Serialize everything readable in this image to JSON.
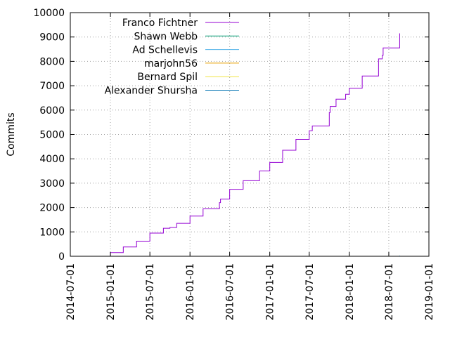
{
  "chart_data": {
    "type": "line",
    "title": "",
    "xlabel": "",
    "ylabel": "Commits",
    "ylim": [
      0,
      10000
    ],
    "yticks": [
      0,
      1000,
      2000,
      3000,
      4000,
      5000,
      6000,
      7000,
      8000,
      9000,
      10000
    ],
    "xlim": [
      "2014-07-01",
      "2019-01-01"
    ],
    "xticks": [
      "2014-07-01",
      "2015-01-01",
      "2015-07-01",
      "2016-01-01",
      "2016-07-01",
      "2017-01-01",
      "2017-07-01",
      "2018-01-01",
      "2018-07-01",
      "2019-01-01"
    ],
    "grid": true,
    "legend_position": "top-left",
    "series": [
      {
        "name": "Franco Fichtner",
        "color": "#9400d3",
        "x": [
          "2014-12-15",
          "2015-01-01",
          "2015-03-01",
          "2015-05-01",
          "2015-07-01",
          "2015-09-01",
          "2015-10-01",
          "2015-11-01",
          "2016-01-01",
          "2016-03-01",
          "2016-05-15",
          "2016-05-20",
          "2016-07-01",
          "2016-09-01",
          "2016-11-15",
          "2017-01-01",
          "2017-03-01",
          "2017-05-01",
          "2017-07-01",
          "2017-07-15",
          "2017-10-01",
          "2017-10-05",
          "2017-11-01",
          "2017-12-15",
          "2018-01-01",
          "2018-03-01",
          "2018-05-15",
          "2018-06-01",
          "2018-06-05",
          "2018-08-20"
        ],
        "values": [
          0,
          150,
          380,
          620,
          950,
          1150,
          1180,
          1350,
          1650,
          1950,
          2200,
          2350,
          2750,
          3100,
          3500,
          3850,
          4350,
          4800,
          5150,
          5350,
          5900,
          6150,
          6450,
          6650,
          6900,
          7400,
          8100,
          8250,
          8550,
          9150
        ]
      },
      {
        "name": "Shawn Webb",
        "color": "#009e73",
        "x": [
          "2016-10-01",
          "2018-08-20"
        ],
        "values": [
          0,
          10
        ]
      },
      {
        "name": "Ad Schellevis",
        "color": "#56b4e9",
        "x": [
          "2016-10-01",
          "2018-08-20"
        ],
        "values": [
          0,
          30
        ]
      },
      {
        "name": "marjohn56",
        "color": "#e69f00",
        "x": [
          "2017-05-01",
          "2018-08-20"
        ],
        "values": [
          0,
          15
        ]
      },
      {
        "name": "Bernard Spil",
        "color": "#f0e442",
        "x": [
          "2016-01-01",
          "2018-08-20"
        ],
        "values": [
          0,
          5
        ]
      },
      {
        "name": "Alexander Shursha",
        "color": "#0072b2",
        "x": [
          "2017-06-01",
          "2018-08-20"
        ],
        "values": [
          0,
          8
        ]
      }
    ]
  }
}
